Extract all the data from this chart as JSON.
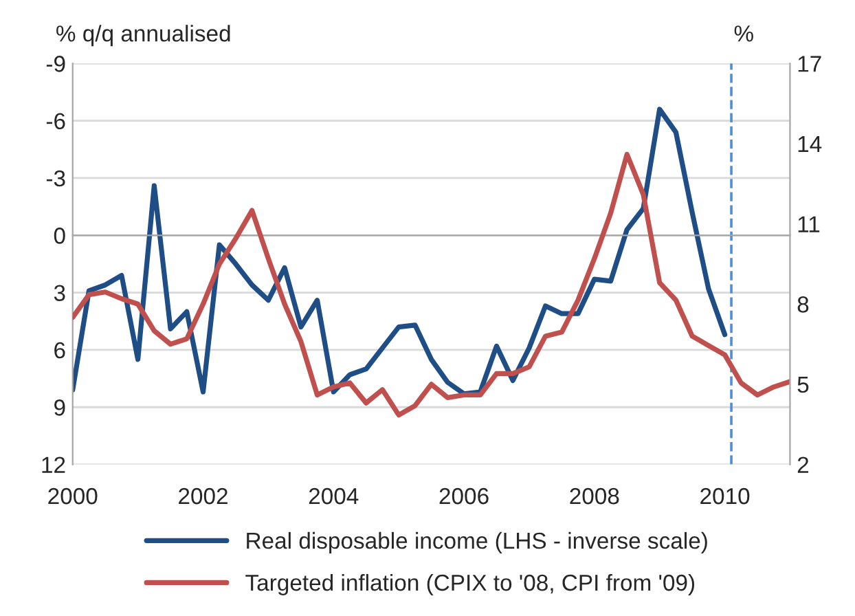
{
  "chart_data": {
    "type": "line",
    "ylabel": "% q/q annualised",
    "y2label": "%",
    "xlim": [
      2000,
      2011
    ],
    "xticks": [
      2000,
      2002,
      2004,
      2006,
      2008,
      2010
    ],
    "ylim": [
      12,
      -9
    ],
    "yticks": [
      -9,
      -6,
      -3,
      0,
      3,
      6,
      9,
      12
    ],
    "y2lim": [
      2,
      17
    ],
    "y2ticks": [
      2,
      5,
      8,
      11,
      14,
      17
    ],
    "grid": "y",
    "legend": "bottom",
    "marker": "none",
    "line_style": "solid",
    "ref_lines": [
      {
        "axis": "x",
        "value": 2010.1,
        "label": null,
        "color": "#4f8fd6",
        "line_style": "dashed"
      }
    ],
    "series": [
      {
        "name": "Real disposable income (LHS - inverse scale)",
        "color": "#1f4e87",
        "x": [
          2000,
          2000.25,
          2000.5,
          2000.75,
          2001,
          2001.25,
          2001.5,
          2001.75,
          2002,
          2002.25,
          2002.5,
          2002.75,
          2003,
          2003.25,
          2003.5,
          2003.75,
          2004,
          2004.25,
          2004.5,
          2004.75,
          2005,
          2005.25,
          2005.5,
          2005.75,
          2006,
          2006.25,
          2006.5,
          2006.75,
          2007,
          2007.25,
          2007.5,
          2007.75,
          2008,
          2008.25,
          2008.5,
          2008.75,
          2009,
          2009.25,
          2009.5,
          2009.75,
          2010
        ],
        "values": [
          8.1,
          2.9,
          2.6,
          2.1,
          6.5,
          -2.6,
          4.9,
          4.0,
          8.2,
          0.5,
          1.5,
          2.6,
          3.4,
          1.7,
          4.8,
          3.4,
          8.2,
          7.3,
          7.0,
          5.9,
          4.8,
          4.7,
          6.5,
          7.7,
          8.3,
          8.2,
          5.8,
          7.6,
          5.9,
          3.7,
          4.1,
          4.1,
          2.3,
          2.4,
          -0.3,
          -1.4,
          -6.6,
          -5.4,
          -1.2,
          2.8,
          5.2
        ]
      },
      {
        "name": "Targeted inflation (CPIX to '08, CPI from '09)",
        "color": "#c0504d",
        "axis": "y2",
        "x": [
          2000,
          2000.25,
          2000.5,
          2000.75,
          2001,
          2001.25,
          2001.5,
          2001.75,
          2002,
          2002.25,
          2002.5,
          2002.75,
          2003,
          2003.25,
          2003.5,
          2003.75,
          2004,
          2004.25,
          2004.5,
          2004.75,
          2005,
          2005.25,
          2005.5,
          2005.75,
          2006,
          2006.25,
          2006.5,
          2006.75,
          2007,
          2007.25,
          2007.5,
          2007.75,
          2008,
          2008.25,
          2008.5,
          2008.75,
          2009,
          2009.25,
          2009.5,
          2009.75,
          2010,
          2010.25,
          2010.5,
          2010.75,
          2011
        ],
        "values": [
          7.5,
          8.35,
          8.45,
          8.2,
          8.0,
          7.0,
          6.5,
          6.7,
          8.0,
          9.5,
          10.45,
          11.5,
          9.7,
          8.0,
          6.6,
          4.6,
          4.9,
          5.05,
          4.3,
          4.8,
          3.85,
          4.2,
          5.0,
          4.5,
          4.6,
          4.6,
          5.4,
          5.4,
          5.65,
          6.8,
          6.95,
          8.15,
          9.7,
          11.4,
          13.6,
          12.1,
          8.8,
          8.15,
          6.8,
          6.45,
          6.1,
          5.05,
          4.6,
          4.9,
          5.1
        ]
      }
    ]
  }
}
